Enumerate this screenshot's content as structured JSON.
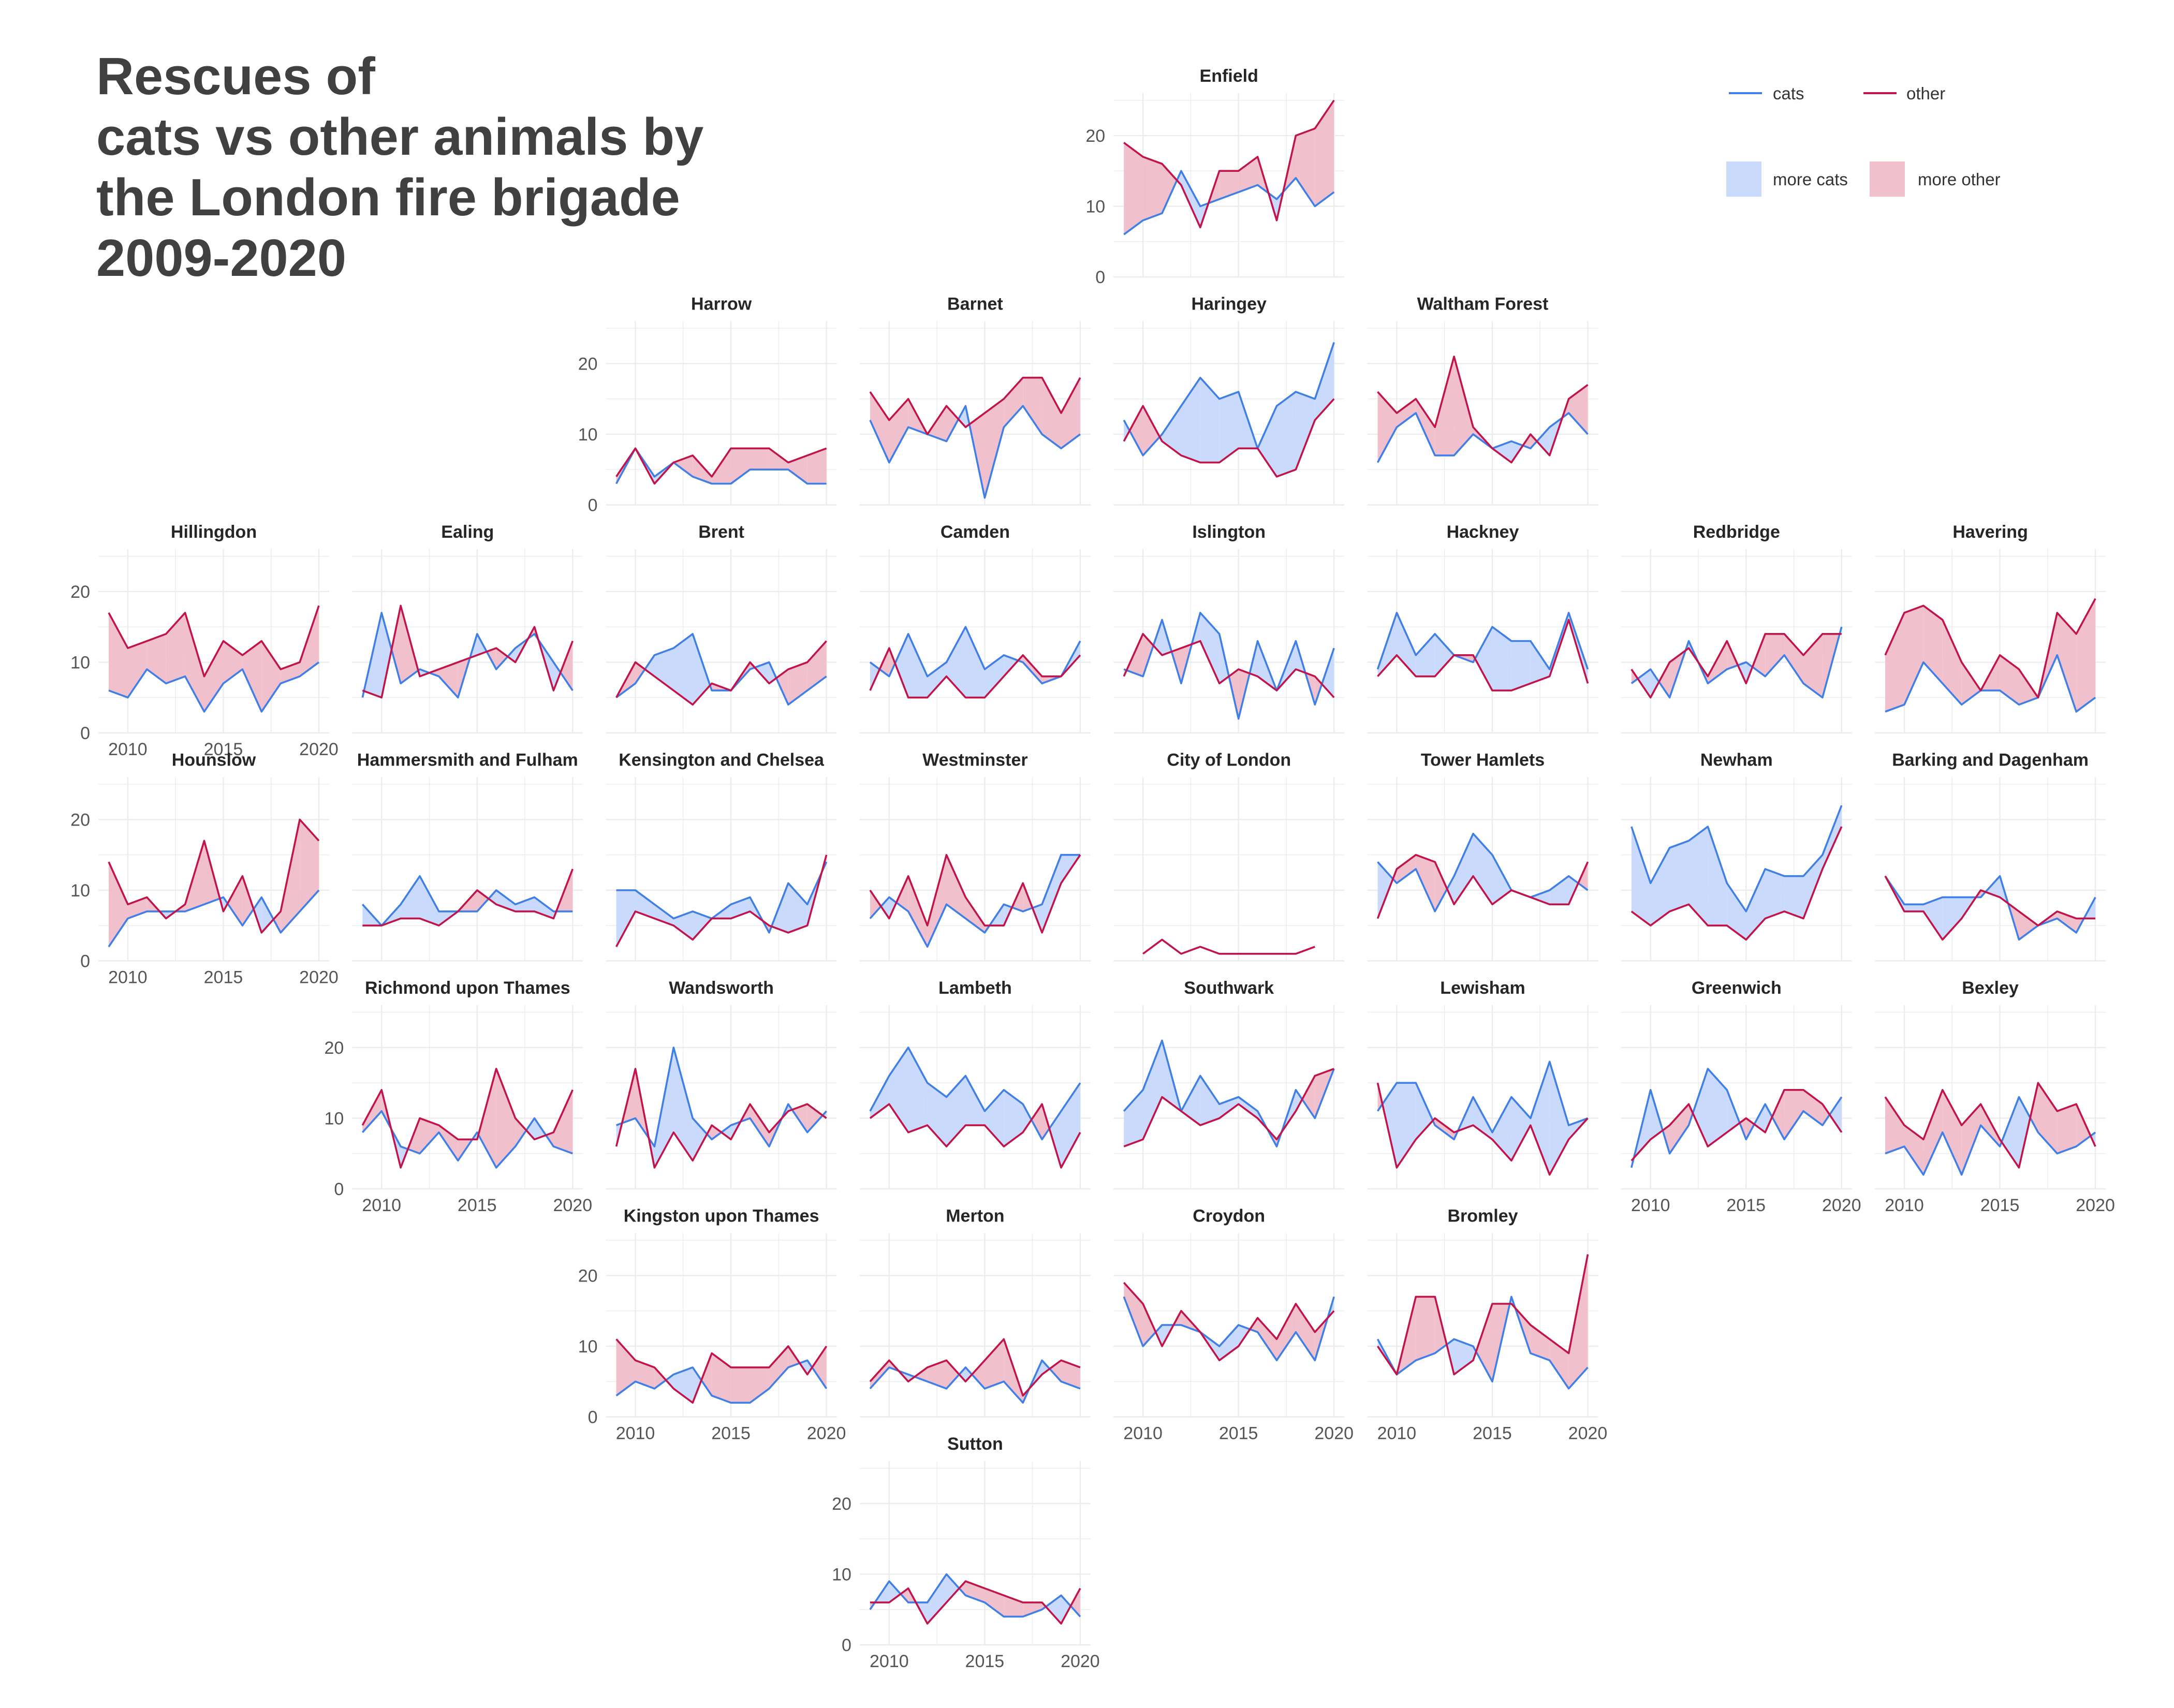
{
  "title": {
    "lines": [
      "Rescues of",
      "cats vs other animals by",
      "the London fire brigade",
      "2009-2020"
    ]
  },
  "legend": {
    "cats_label": "cats",
    "other_label": "other",
    "more_cats_label": "more cats",
    "more_other_label": "more other"
  },
  "colors": {
    "cats": "#3f7fe6",
    "other": "#c0144a",
    "more_cats_fill": "#c9dafc",
    "more_other_fill": "#f0c0cd",
    "grid": "#ececec"
  },
  "chart_data": {
    "type": "line",
    "layout": "geofacet grid of London boroughs",
    "x": [
      2009,
      2010,
      2011,
      2012,
      2013,
      2014,
      2015,
      2016,
      2017,
      2018,
      2019,
      2020
    ],
    "x_ticks": [
      2010,
      2015,
      2020
    ],
    "y_ticks": [
      0,
      10,
      20
    ],
    "ylim": [
      0,
      26
    ],
    "series_names": [
      "cats",
      "other"
    ],
    "panels": [
      {
        "name": "Enfield",
        "row": 0,
        "col": 4,
        "cats": [
          6,
          8,
          9,
          15,
          10,
          11,
          12,
          13,
          11,
          14,
          10,
          12
        ],
        "other": [
          19,
          17,
          16,
          13,
          7,
          15,
          15,
          17,
          8,
          20,
          21,
          25
        ]
      },
      {
        "name": "Harrow",
        "row": 1,
        "col": 2,
        "cats": [
          3,
          8,
          4,
          6,
          4,
          3,
          3,
          5,
          5,
          5,
          3,
          3
        ],
        "other": [
          4,
          8,
          3,
          6,
          7,
          4,
          8,
          8,
          8,
          6,
          7,
          8
        ]
      },
      {
        "name": "Barnet",
        "row": 1,
        "col": 3,
        "cats": [
          12,
          6,
          11,
          10,
          9,
          14,
          1,
          11,
          14,
          10,
          8,
          10
        ],
        "other": [
          16,
          12,
          15,
          10,
          14,
          11,
          13,
          15,
          18,
          18,
          13,
          18
        ]
      },
      {
        "name": "Haringey",
        "row": 1,
        "col": 4,
        "cats": [
          12,
          7,
          10,
          14,
          18,
          15,
          16,
          8,
          14,
          16,
          15,
          23
        ],
        "other": [
          9,
          14,
          9,
          7,
          6,
          6,
          8,
          8,
          4,
          5,
          12,
          15
        ]
      },
      {
        "name": "Waltham Forest",
        "row": 1,
        "col": 5,
        "cats": [
          6,
          11,
          13,
          7,
          7,
          10,
          8,
          9,
          8,
          11,
          13,
          10
        ],
        "other": [
          16,
          13,
          15,
          11,
          21,
          11,
          8,
          6,
          10,
          7,
          15,
          17
        ]
      },
      {
        "name": "Hillingdon",
        "row": 2,
        "col": 0,
        "cats": [
          6,
          5,
          9,
          7,
          8,
          3,
          7,
          9,
          3,
          7,
          8,
          10
        ],
        "other": [
          17,
          12,
          13,
          14,
          17,
          8,
          13,
          11,
          13,
          9,
          10,
          18
        ]
      },
      {
        "name": "Ealing",
        "row": 2,
        "col": 1,
        "cats": [
          5,
          17,
          7,
          9,
          8,
          5,
          14,
          9,
          12,
          14,
          10,
          6
        ],
        "other": [
          6,
          5,
          18,
          8,
          9,
          10,
          11,
          12,
          10,
          15,
          6,
          13
        ]
      },
      {
        "name": "Brent",
        "row": 2,
        "col": 2,
        "cats": [
          5,
          7,
          11,
          12,
          14,
          6,
          6,
          9,
          10,
          4,
          6,
          8
        ],
        "other": [
          5,
          10,
          8,
          6,
          4,
          7,
          6,
          10,
          7,
          9,
          10,
          13
        ]
      },
      {
        "name": "Camden",
        "row": 2,
        "col": 3,
        "cats": [
          10,
          8,
          14,
          8,
          10,
          15,
          9,
          11,
          10,
          7,
          8,
          13
        ],
        "other": [
          6,
          12,
          5,
          5,
          8,
          5,
          5,
          8,
          11,
          8,
          8,
          11
        ]
      },
      {
        "name": "Islington",
        "row": 2,
        "col": 4,
        "cats": [
          9,
          8,
          16,
          7,
          17,
          14,
          2,
          13,
          6,
          13,
          4,
          12
        ],
        "other": [
          8,
          14,
          11,
          12,
          13,
          7,
          9,
          8,
          6,
          9,
          8,
          5
        ]
      },
      {
        "name": "Hackney",
        "row": 2,
        "col": 5,
        "cats": [
          9,
          17,
          11,
          14,
          11,
          10,
          15,
          13,
          13,
          9,
          17,
          9
        ],
        "other": [
          8,
          11,
          8,
          8,
          11,
          11,
          6,
          6,
          7,
          8,
          16,
          7
        ]
      },
      {
        "name": "Redbridge",
        "row": 2,
        "col": 6,
        "cats": [
          7,
          9,
          5,
          13,
          7,
          9,
          10,
          8,
          11,
          7,
          5,
          15
        ],
        "other": [
          9,
          5,
          10,
          12,
          8,
          13,
          7,
          14,
          14,
          11,
          14,
          14
        ]
      },
      {
        "name": "Havering",
        "row": 2,
        "col": 7,
        "cats": [
          3,
          4,
          10,
          7,
          4,
          6,
          6,
          4,
          5,
          11,
          3,
          5
        ],
        "other": [
          11,
          17,
          18,
          16,
          10,
          6,
          11,
          9,
          5,
          17,
          14,
          19
        ]
      },
      {
        "name": "Hounslow",
        "row": 3,
        "col": 0,
        "cats": [
          2,
          6,
          7,
          7,
          7,
          8,
          9,
          5,
          9,
          4,
          7,
          10
        ],
        "other": [
          14,
          8,
          9,
          6,
          8,
          17,
          7,
          12,
          4,
          7,
          20,
          17
        ]
      },
      {
        "name": "Hammersmith and Fulham",
        "row": 3,
        "col": 1,
        "cats": [
          8,
          5,
          8,
          12,
          7,
          7,
          7,
          10,
          8,
          9,
          7,
          7
        ],
        "other": [
          5,
          5,
          6,
          6,
          5,
          7,
          10,
          8,
          7,
          7,
          6,
          13
        ]
      },
      {
        "name": "Kensington and Chelsea",
        "row": 3,
        "col": 2,
        "cats": [
          10,
          10,
          8,
          6,
          7,
          6,
          8,
          9,
          4,
          11,
          8,
          14
        ],
        "other": [
          2,
          7,
          6,
          5,
          3,
          6,
          6,
          7,
          5,
          4,
          5,
          15
        ]
      },
      {
        "name": "Westminster",
        "row": 3,
        "col": 3,
        "cats": [
          6,
          9,
          7,
          2,
          8,
          6,
          4,
          8,
          7,
          8,
          15,
          15
        ],
        "other": [
          10,
          6,
          12,
          5,
          15,
          9,
          5,
          5,
          11,
          4,
          11,
          15
        ]
      },
      {
        "name": "City of London",
        "row": 3,
        "col": 4,
        "cats": [
          null,
          null,
          null,
          null,
          null,
          null,
          null,
          null,
          null,
          null,
          null,
          null
        ],
        "other": [
          null,
          1,
          3,
          1,
          2,
          1,
          1,
          1,
          1,
          1,
          2,
          null
        ]
      },
      {
        "name": "Tower Hamlets",
        "row": 3,
        "col": 5,
        "cats": [
          14,
          11,
          13,
          7,
          12,
          18,
          15,
          10,
          9,
          10,
          12,
          10
        ],
        "other": [
          6,
          13,
          15,
          14,
          8,
          12,
          8,
          10,
          9,
          8,
          8,
          14
        ]
      },
      {
        "name": "Newham",
        "row": 3,
        "col": 6,
        "cats": [
          19,
          11,
          16,
          17,
          19,
          11,
          7,
          13,
          12,
          12,
          15,
          22
        ],
        "other": [
          7,
          5,
          7,
          8,
          5,
          5,
          3,
          6,
          7,
          6,
          13,
          19
        ]
      },
      {
        "name": "Barking and Dagenham",
        "row": 3,
        "col": 7,
        "cats": [
          12,
          8,
          8,
          9,
          9,
          9,
          12,
          3,
          5,
          6,
          4,
          9
        ],
        "other": [
          12,
          7,
          7,
          3,
          6,
          10,
          9,
          7,
          5,
          7,
          6,
          6
        ]
      },
      {
        "name": "Richmond upon Thames",
        "row": 4,
        "col": 1,
        "cats": [
          8,
          11,
          6,
          5,
          8,
          4,
          8,
          3,
          6,
          10,
          6,
          5
        ],
        "other": [
          9,
          14,
          3,
          10,
          9,
          7,
          7,
          17,
          10,
          7,
          8,
          14
        ]
      },
      {
        "name": "Wandsworth",
        "row": 4,
        "col": 2,
        "cats": [
          9,
          10,
          6,
          20,
          10,
          7,
          9,
          10,
          6,
          12,
          8,
          11
        ],
        "other": [
          6,
          17,
          3,
          8,
          4,
          9,
          7,
          12,
          8,
          11,
          12,
          10
        ]
      },
      {
        "name": "Lambeth",
        "row": 4,
        "col": 3,
        "cats": [
          11,
          16,
          20,
          15,
          13,
          16,
          11,
          14,
          12,
          7,
          11,
          15
        ],
        "other": [
          10,
          12,
          8,
          9,
          6,
          9,
          9,
          6,
          8,
          12,
          3,
          8
        ]
      },
      {
        "name": "Southwark",
        "row": 4,
        "col": 4,
        "cats": [
          11,
          14,
          21,
          11,
          16,
          12,
          13,
          11,
          6,
          14,
          10,
          17
        ],
        "other": [
          6,
          7,
          13,
          11,
          9,
          10,
          12,
          10,
          7,
          11,
          16,
          17
        ]
      },
      {
        "name": "Lewisham",
        "row": 4,
        "col": 5,
        "cats": [
          11,
          15,
          15,
          9,
          7,
          13,
          8,
          13,
          10,
          18,
          9,
          10
        ],
        "other": [
          15,
          3,
          7,
          10,
          8,
          9,
          7,
          4,
          9,
          2,
          7,
          10
        ]
      },
      {
        "name": "Greenwich",
        "row": 4,
        "col": 6,
        "cats": [
          3,
          14,
          5,
          9,
          17,
          14,
          7,
          12,
          7,
          11,
          9,
          13
        ],
        "other": [
          4,
          7,
          9,
          12,
          6,
          8,
          10,
          8,
          14,
          14,
          12,
          8
        ]
      },
      {
        "name": "Bexley",
        "row": 4,
        "col": 7,
        "cats": [
          5,
          6,
          2,
          8,
          2,
          9,
          6,
          13,
          8,
          5,
          6,
          8
        ],
        "other": [
          13,
          9,
          7,
          14,
          9,
          12,
          7,
          3,
          15,
          11,
          12,
          6
        ]
      },
      {
        "name": "Kingston upon Thames",
        "row": 5,
        "col": 2,
        "cats": [
          3,
          5,
          4,
          6,
          7,
          3,
          2,
          2,
          4,
          7,
          8,
          4
        ],
        "other": [
          11,
          8,
          7,
          4,
          2,
          9,
          7,
          7,
          7,
          10,
          6,
          10
        ]
      },
      {
        "name": "Merton",
        "row": 5,
        "col": 3,
        "cats": [
          4,
          7,
          6,
          5,
          4,
          7,
          4,
          5,
          2,
          8,
          5,
          4
        ],
        "other": [
          5,
          8,
          5,
          7,
          8,
          5,
          8,
          11,
          3,
          6,
          8,
          7
        ]
      },
      {
        "name": "Croydon",
        "row": 5,
        "col": 4,
        "cats": [
          17,
          10,
          13,
          13,
          12,
          10,
          13,
          12,
          8,
          12,
          8,
          17
        ],
        "other": [
          19,
          16,
          10,
          15,
          12,
          8,
          10,
          14,
          11,
          16,
          12,
          15
        ]
      },
      {
        "name": "Bromley",
        "row": 5,
        "col": 5,
        "cats": [
          11,
          6,
          8,
          9,
          11,
          10,
          5,
          17,
          9,
          8,
          4,
          7
        ],
        "other": [
          10,
          6,
          17,
          17,
          6,
          8,
          16,
          16,
          13,
          11,
          9,
          23
        ]
      },
      {
        "name": "Sutton",
        "row": 6,
        "col": 3,
        "cats": [
          5,
          9,
          6,
          6,
          10,
          7,
          6,
          4,
          4,
          5,
          7,
          4
        ],
        "other": [
          6,
          6,
          8,
          3,
          6,
          9,
          8,
          7,
          6,
          6,
          3,
          8
        ]
      }
    ],
    "x_axis_panels": [
      "Hillingdon",
      "Hounslow",
      "Richmond upon Thames",
      "Bexley",
      "Kingston upon Thames",
      "Greenwich",
      "Croydon",
      "Bromley",
      "Sutton"
    ],
    "y_axis_panels": [
      "Enfield",
      "Harrow",
      "Hillingdon",
      "Hounslow",
      "Richmond upon Thames",
      "Kingston upon Thames",
      "Sutton"
    ],
    "legend_position": "top-right"
  }
}
